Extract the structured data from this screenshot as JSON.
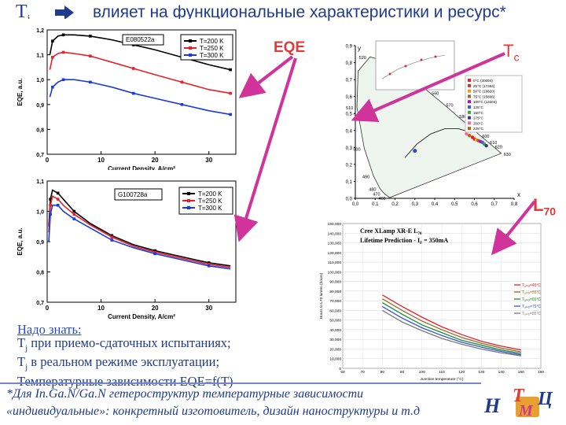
{
  "slide": {
    "title_symbol": "T",
    "title_symbol_sub": "j",
    "title_text": "влияет на функциональные характеристики и ресурс*",
    "label_eqe": "EQE",
    "label_tc_main": "T",
    "label_tc_sub": "c",
    "label_l70_main": "L",
    "label_l70_sub": "70",
    "note_heading": "Надо знать:",
    "note_line1_pre": "T",
    "note_line1_sub": "j",
    "note_line1_post": " при приемо-сдаточных  испытаниях;",
    "note_line2_pre": "T",
    "note_line2_sub": "j",
    "note_line2_post": " в  реальном режиме эксплуатации;",
    "note_line3": "Температурные зависимости EQE=f(T)",
    "footnote_line1": "*Для In.Ga.N/Ga.N гетероструктур температурные зависимости",
    "footnote_line2": "«индивидуальные»: конкретный изготовитель, дизайн наноструктуры и т.д",
    "logo_letters": [
      "Н",
      "Т",
      "Ц",
      "М"
    ],
    "colors": {
      "title": "#1f3b8a",
      "accent": "#e03a3a",
      "black": "#000000",
      "red": "#e8202a",
      "blue": "#1a3be0",
      "arrow": "#d0339a"
    }
  },
  "chart_data": [
    {
      "type": "line",
      "tag": "E080522a",
      "xlabel": "Current Density, A/cm²",
      "ylabel": "EQE, a.u.",
      "xlim": [
        0,
        35
      ],
      "ylim": [
        0.7,
        1.2
      ],
      "xticks": [
        "0",
        "10",
        "20",
        "30"
      ],
      "yticks": [
        "0,7",
        "0,8",
        "0,9",
        "1,0",
        "1,1",
        "1,2"
      ],
      "series": [
        {
          "name": "T=200 K",
          "color": "#000000",
          "x": [
            0.5,
            1,
            2,
            3,
            5,
            8,
            12,
            16,
            20,
            25,
            30,
            34
          ],
          "y": [
            1.1,
            1.155,
            1.175,
            1.18,
            1.18,
            1.175,
            1.16,
            1.14,
            1.12,
            1.09,
            1.06,
            1.04
          ]
        },
        {
          "name": "T=250 K",
          "color": "#e8202a",
          "x": [
            0.5,
            1,
            2,
            3,
            5,
            8,
            12,
            16,
            20,
            25,
            30,
            34
          ],
          "y": [
            1.04,
            1.09,
            1.105,
            1.11,
            1.105,
            1.095,
            1.07,
            1.045,
            1.02,
            0.99,
            0.96,
            0.945
          ]
        },
        {
          "name": "T=300 K",
          "color": "#1a3be0",
          "x": [
            0.5,
            1,
            2,
            3,
            5,
            8,
            12,
            16,
            20,
            25,
            30,
            34
          ],
          "y": [
            0.93,
            0.97,
            0.99,
            1.0,
            1.0,
            0.99,
            0.97,
            0.945,
            0.925,
            0.9,
            0.875,
            0.86
          ]
        }
      ]
    },
    {
      "type": "line",
      "tag": "G100728a",
      "xlabel": "Current Density, A/cm²",
      "ylabel": "EQE, a.u.",
      "xlim": [
        0,
        35
      ],
      "ylim": [
        0.7,
        1.1
      ],
      "xticks": [
        "0",
        "10",
        "20",
        "30"
      ],
      "yticks": [
        "0,7",
        "0,8",
        "0,9",
        "1,0",
        "1,1"
      ],
      "series": [
        {
          "name": "T=200 K",
          "color": "#000000",
          "x": [
            0.3,
            0.6,
            1,
            2,
            3,
            5,
            8,
            12,
            16,
            20,
            25,
            30,
            34
          ],
          "y": [
            0.95,
            1.04,
            1.07,
            1.06,
            1.04,
            1.0,
            0.96,
            0.92,
            0.89,
            0.87,
            0.85,
            0.83,
            0.82
          ]
        },
        {
          "name": "T=250 K",
          "color": "#e8202a",
          "x": [
            0.3,
            0.6,
            1,
            2,
            3,
            5,
            8,
            12,
            16,
            20,
            25,
            30,
            34
          ],
          "y": [
            0.93,
            1.02,
            1.05,
            1.04,
            1.02,
            0.99,
            0.955,
            0.915,
            0.885,
            0.865,
            0.845,
            0.825,
            0.815
          ]
        },
        {
          "name": "T=300 K",
          "color": "#1a3be0",
          "x": [
            0.3,
            0.6,
            1,
            2,
            3,
            5,
            8,
            12,
            16,
            20,
            25,
            30,
            34
          ],
          "y": [
            0.9,
            0.99,
            1.02,
            1.02,
            1.0,
            0.975,
            0.945,
            0.905,
            0.88,
            0.86,
            0.84,
            0.82,
            0.81
          ]
        }
      ]
    },
    {
      "type": "scatter",
      "kind": "CIE chromaticity diagram",
      "xlabel": "x",
      "ylabel": "y",
      "xlim": [
        0,
        0.8
      ],
      "ylim": [
        0,
        0.9
      ],
      "xticks": [
        "0,0",
        "0,1",
        "0,2",
        "0,3",
        "0,4",
        "0,5",
        "0,6",
        "0,7",
        "0,8"
      ],
      "yticks": [
        "0,0",
        "0,1",
        "0,2",
        "0,3",
        "0,4",
        "0,5",
        "0,6",
        "0,7",
        "0,8",
        "0,9"
      ],
      "locus_labels": [
        "520",
        "530",
        "510",
        "540",
        "550",
        "560",
        "570",
        "500",
        "580",
        "590",
        "600",
        "610",
        "620",
        "630",
        "490",
        "480",
        "470",
        "460"
      ],
      "legend": [
        "0°C (30094)",
        "25°C (17394)",
        "50°C (16820)",
        "75°C (15806)",
        "100°C (13204)",
        "125°C",
        "150°C",
        "175°C",
        "200°C",
        "225°C"
      ]
    },
    {
      "type": "line",
      "title_line1": "Cree XLamp XR-E L",
      "title_line1_sub": "70",
      "title_line2": "Lifetime Prediction - I",
      "title_line2_sub": "F",
      "title_line2_post": " = 350mA",
      "xlabel": "Junction temperature (°C)",
      "ylabel": "Hours to L70 lumen (hours)",
      "xlim": [
        60,
        160
      ],
      "ylim": [
        0,
        150000
      ],
      "xticks": [
        "60",
        "70",
        "80",
        "90",
        "100",
        "110",
        "120",
        "130",
        "140",
        "150",
        "160"
      ],
      "yticks": [
        "0",
        "10,000",
        "20,000",
        "30,000",
        "40,000",
        "50,000",
        "60,000",
        "70,000",
        "80,000",
        "90,000",
        "100,000",
        "110,000",
        "120,000",
        "130,000",
        "140,000",
        "150,000"
      ],
      "series": [
        {
          "name": "Tₐₘᵦ=45°C",
          "color": "#e8202a",
          "x": [
            80,
            90,
            100,
            110,
            120,
            130,
            140,
            150
          ],
          "y": [
            76000,
            64000,
            53000,
            43000,
            35000,
            28000,
            23000,
            19000
          ]
        },
        {
          "name": "Tₐₘᵦ=55°C",
          "color": "#9a6a2a",
          "x": [
            80,
            90,
            100,
            110,
            120,
            130,
            140,
            150
          ],
          "y": [
            72000,
            60000,
            49000,
            40000,
            32000,
            26000,
            21000,
            17000
          ]
        },
        {
          "name": "Tₐₘᵦ=65°C",
          "color": "#1a8a3a",
          "x": [
            80,
            90,
            100,
            110,
            120,
            130,
            140,
            150
          ],
          "y": [
            68000,
            56000,
            45000,
            37000,
            29000,
            24000,
            19000,
            15500
          ]
        },
        {
          "name": "Tₐₘᵦ=75°C",
          "color": "#3355cc",
          "x": [
            80,
            90,
            100,
            110,
            120,
            130,
            140,
            150
          ],
          "y": [
            64000,
            52000,
            42000,
            34000,
            27000,
            22000,
            17500,
            14000
          ]
        },
        {
          "name": "Tₐₘᵦ=85°C",
          "color": "#7a7a7a",
          "x": [
            80,
            90,
            100,
            110,
            120,
            130,
            140,
            150
          ],
          "y": [
            60000,
            48000,
            39000,
            31000,
            25000,
            20000,
            16000,
            13000
          ]
        }
      ]
    }
  ]
}
